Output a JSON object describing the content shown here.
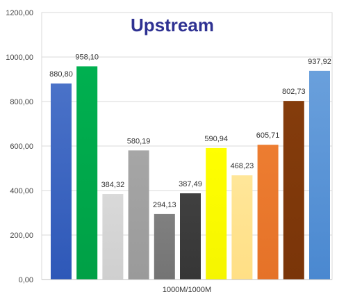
{
  "chart_data": {
    "type": "bar",
    "title": "Upstream",
    "categories": [
      "1000M/1000M"
    ],
    "ylim": [
      0,
      1200
    ],
    "ytick_step": 200,
    "ytick_labels": [
      "0,00",
      "200,00",
      "400,00",
      "600,00",
      "800,00",
      "1000,00",
      "1200,00"
    ],
    "grid": true,
    "legend": "none",
    "series": [
      {
        "values": [
          880.8
        ],
        "label": "880,80",
        "color": "#4A72C8",
        "color2": "#2E58B8"
      },
      {
        "values": [
          958.1
        ],
        "label": "958,10",
        "color": "#00B050",
        "color2": "#00A046"
      },
      {
        "values": [
          384.32
        ],
        "label": "384,32",
        "color": "#D9D9D9",
        "color2": "#CFCFCF"
      },
      {
        "values": [
          580.19
        ],
        "label": "580,19",
        "color": "#A6A6A6",
        "color2": "#9A9A9A"
      },
      {
        "values": [
          294.13
        ],
        "label": "294,13",
        "color": "#808080",
        "color2": "#747474"
      },
      {
        "values": [
          387.49
        ],
        "label": "387,49",
        "color": "#404040",
        "color2": "#363636"
      },
      {
        "values": [
          590.94
        ],
        "label": "590,94",
        "color": "#FFFF00",
        "color2": "#F5F500"
      },
      {
        "values": [
          468.23
        ],
        "label": "468,23",
        "color": "#FFE699",
        "color2": "#FFDF85"
      },
      {
        "values": [
          605.71
        ],
        "label": "605,71",
        "color": "#ED7D31",
        "color2": "#E57228"
      },
      {
        "values": [
          802.73
        ],
        "label": "802,73",
        "color": "#843C0C",
        "color2": "#7A3509"
      },
      {
        "values": [
          937.92
        ],
        "label": "937,92",
        "color": "#6AA0DC",
        "color2": "#4A88D0"
      }
    ]
  }
}
